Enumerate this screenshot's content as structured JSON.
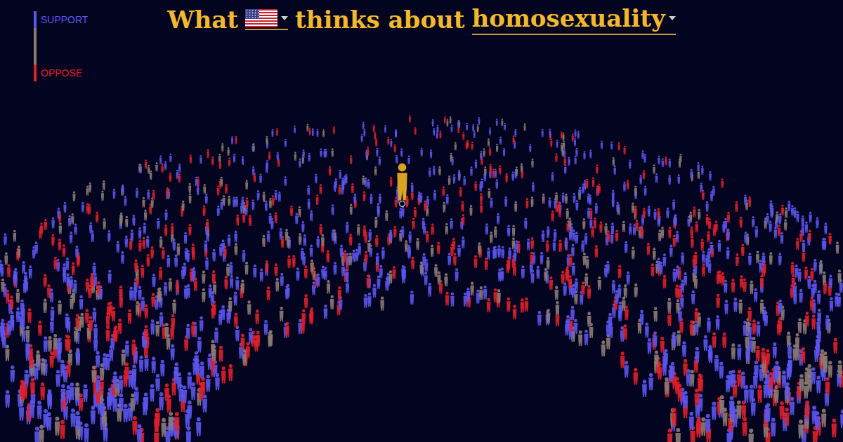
{
  "chart_data": {
    "type": "crowd",
    "title_before": "What",
    "title_after": "thinks about",
    "topic": "homosexuality",
    "categories": [
      "SUPPORT",
      null,
      "OPPOSE"
    ],
    "values": [
      50,
      20,
      30
    ],
    "colors": [
      "#5b55f0",
      "#8c7b76",
      "#e0202a"
    ],
    "legend": "top-left",
    "tick_labels": false
  }
}
